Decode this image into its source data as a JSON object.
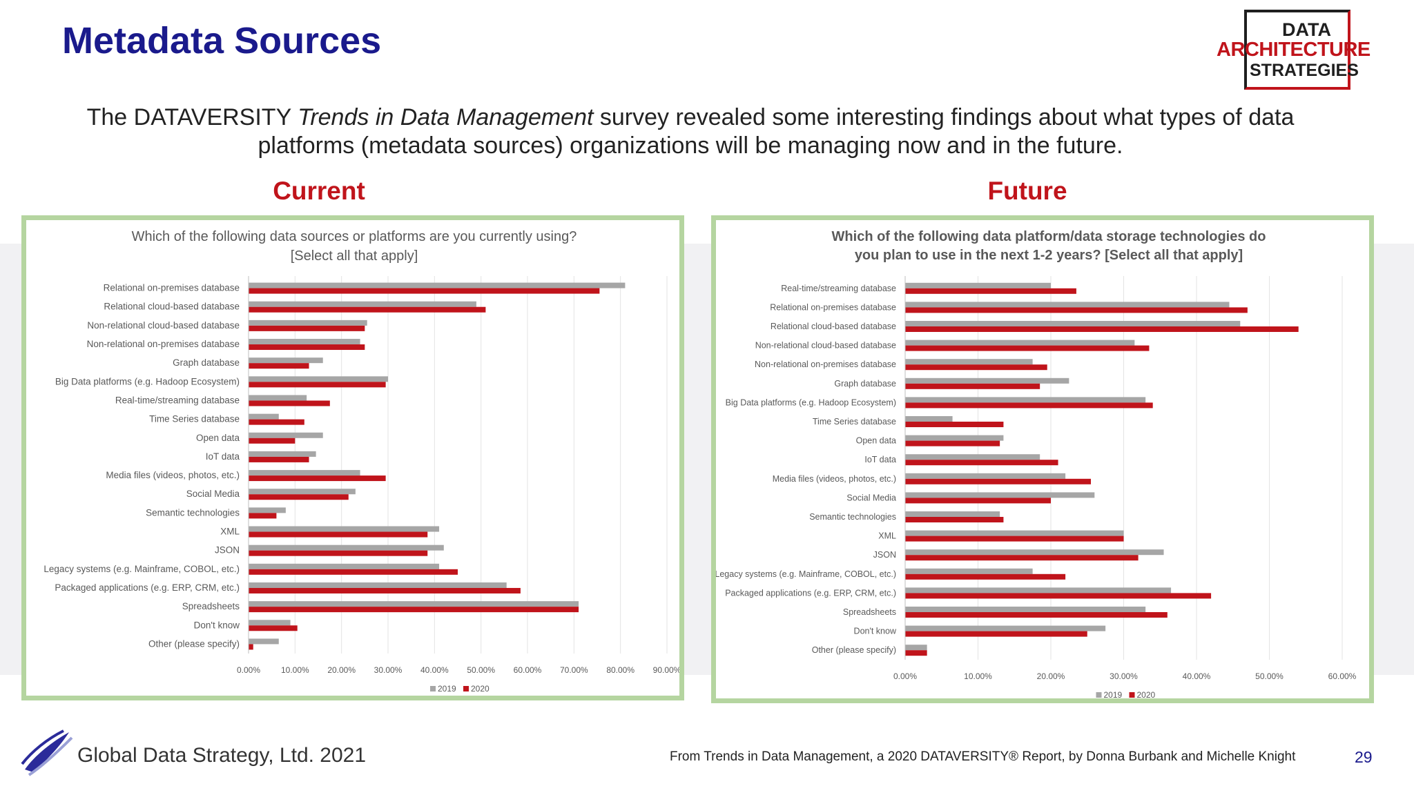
{
  "slide": {
    "title": "Metadata Sources",
    "intro_pre": "The DATAVERSITY ",
    "intro_em": "Trends in Data Management",
    "intro_post": " survey revealed some interesting findings about what types of data platforms (metadata sources) organizations will be managing now and in the future.",
    "current_label": "Current",
    "future_label": "Future",
    "footer_company": "Global Data Strategy, Ltd. 2021",
    "citation": "From Trends in Data Management, a 2020 DATAVERSITY® Report, by Donna Burbank and Michelle Knight",
    "page_number": "29"
  },
  "logo": {
    "line1": "DATA",
    "line2": "ARCHITECTURE",
    "line3": "STRATEGIES"
  },
  "colors": {
    "title_blue": "#1a1a8c",
    "accent_red": "#c0141b",
    "series_2019": "#a6a6a6",
    "series_2020": "#c0141b",
    "panel_border": "#b5d5a0",
    "band": "#f1f1f3"
  },
  "chart_data": [
    {
      "type": "bar",
      "orientation": "horizontal",
      "title": "Which of the following data sources or platforms are you currently using?",
      "subtitle": "[Select all that apply]",
      "title_bold": false,
      "categories": [
        "Relational on-premises database",
        "Relational cloud-based database",
        "Non-relational cloud-based database",
        "Non-relational on-premises database",
        "Graph database",
        "Big Data platforms (e.g. Hadoop Ecosystem)",
        "Real-time/streaming database",
        "Time Series database",
        "Open data",
        "IoT data",
        "Media files (videos, photos, etc.)",
        "Social Media",
        "Semantic technologies",
        "XML",
        "JSON",
        "Legacy systems (e.g. Mainframe, COBOL, etc.)",
        "Packaged applications (e.g. ERP, CRM, etc.)",
        "Spreadsheets",
        "Don't know",
        "Other (please specify)"
      ],
      "series": [
        {
          "name": "2019",
          "color": "#a6a6a6",
          "values": [
            81,
            49,
            25.5,
            24,
            16,
            30,
            12.5,
            6.5,
            16,
            14.5,
            24,
            23,
            8,
            41,
            42,
            41,
            55.5,
            71,
            9,
            6.5
          ]
        },
        {
          "name": "2020",
          "color": "#c0141b",
          "values": [
            75.5,
            51,
            25,
            25,
            13,
            29.5,
            17.5,
            12,
            10,
            13,
            29.5,
            21.5,
            6,
            38.5,
            38.5,
            45,
            58.5,
            71,
            10.5,
            1
          ]
        }
      ],
      "xlim": [
        0,
        90
      ],
      "xticks": [
        "0.00%",
        "10.00%",
        "20.00%",
        "30.00%",
        "40.00%",
        "50.00%",
        "60.00%",
        "70.00%",
        "80.00%",
        "90.00%"
      ],
      "legend": [
        "2019",
        "2020"
      ],
      "legend_position": "bottom",
      "grid": true
    },
    {
      "type": "bar",
      "orientation": "horizontal",
      "title": "Which of the following data platform/data storage technologies do",
      "subtitle": "you plan to use in the next 1-2 years? [Select all that apply]",
      "title_bold": true,
      "categories": [
        "Real-time/streaming database",
        "Relational on-premises database",
        "Relational cloud-based database",
        "Non-relational cloud-based database",
        "Non-relational on-premises database",
        "Graph database",
        "Big Data platforms (e.g. Hadoop Ecosystem)",
        "Time Series database",
        "Open data",
        "IoT data",
        "Media files (videos, photos, etc.)",
        "Social Media",
        "Semantic technologies",
        "XML",
        "JSON",
        "Legacy systems (e.g. Mainframe, COBOL, etc.)",
        "Packaged applications (e.g. ERP, CRM, etc.)",
        "Spreadsheets",
        "Don't know",
        "Other (please specify)"
      ],
      "series": [
        {
          "name": "2019",
          "color": "#a6a6a6",
          "values": [
            20,
            44.5,
            46,
            31.5,
            17.5,
            22.5,
            33,
            6.5,
            13.5,
            18.5,
            22,
            26,
            13,
            30,
            35.5,
            17.5,
            36.5,
            33,
            27.5,
            3
          ]
        },
        {
          "name": "2020",
          "color": "#c0141b",
          "values": [
            23.5,
            47,
            54,
            33.5,
            19.5,
            18.5,
            34,
            13.5,
            13,
            21,
            25.5,
            20,
            13.5,
            30,
            32,
            22,
            42,
            36,
            25,
            3
          ]
        }
      ],
      "xlim": [
        0,
        60
      ],
      "xticks": [
        "0.00%",
        "10.00%",
        "20.00%",
        "30.00%",
        "40.00%",
        "50.00%",
        "60.00%"
      ],
      "legend": [
        "2019",
        "2020"
      ],
      "legend_position": "bottom",
      "grid": true
    }
  ]
}
